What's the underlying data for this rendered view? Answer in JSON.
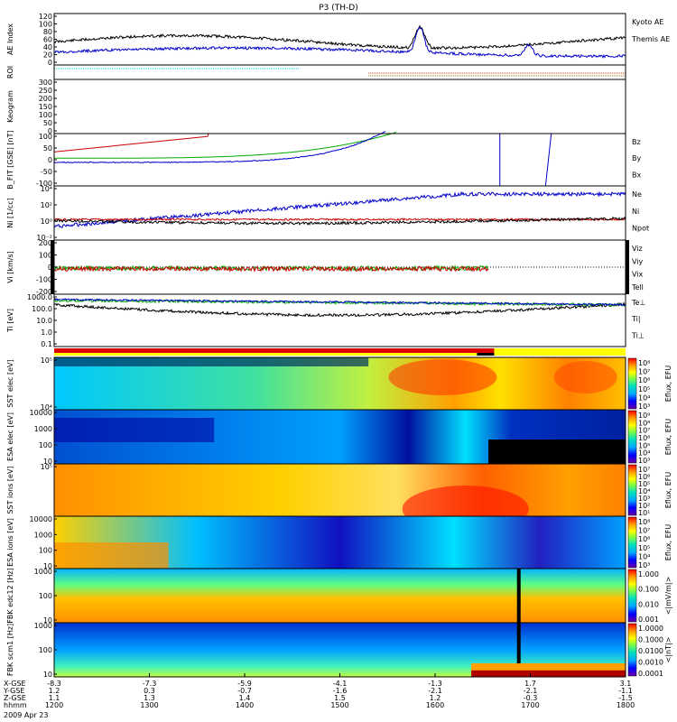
{
  "chart_data": {
    "type": "line",
    "title": "P3 (TH-D)",
    "date_label": "2009 Apr 23",
    "x_ticks": [
      "1200",
      "1300",
      "1400",
      "1500",
      "1600",
      "1700",
      "1800"
    ],
    "orbit_rows": [
      {
        "label": "X-GSE",
        "values": [
          "-8.3",
          "-7.3",
          "-5.9",
          "-4.1",
          "-1.3",
          "1.7",
          "3.1"
        ]
      },
      {
        "label": "Y-GSE",
        "values": [
          "1.2",
          "0.3",
          "-0.7",
          "-1.6",
          "-2.1",
          "-2.1",
          "-1.1"
        ]
      },
      {
        "label": "Z-GSE",
        "values": [
          "1.1",
          "1.3",
          "1.4",
          "1.5",
          "1.2",
          "-0.3",
          "-1.5"
        ]
      },
      {
        "label": "hhmm",
        "values": [
          "1200",
          "1300",
          "1400",
          "1500",
          "1600",
          "1700",
          "1800"
        ]
      }
    ],
    "panels": [
      {
        "id": "ae",
        "ylabel": "AE Index",
        "yticks": [
          "120",
          "100",
          "80",
          "60",
          "40",
          "20",
          "0"
        ],
        "legend": [
          {
            "name": "Kyoto AE",
            "color": "#0000cc"
          },
          {
            "name": "Themis AE",
            "color": "#000000"
          }
        ]
      },
      {
        "id": "roi",
        "ylabel": "ROI"
      },
      {
        "id": "keogram",
        "ylabel": "Keogram",
        "yticks": [
          "300",
          "250",
          "200",
          "150",
          "100",
          "50",
          "0"
        ]
      },
      {
        "id": "bfit",
        "ylabel": "B_FIT [GSE] [nT]",
        "yticks": [
          "100",
          "50",
          "0",
          "-50",
          "-100"
        ],
        "legend": [
          {
            "name": "Bz",
            "color": "#cc0000"
          },
          {
            "name": "By",
            "color": "#00aa00"
          },
          {
            "name": "Bx",
            "color": "#0000cc"
          }
        ]
      },
      {
        "id": "ni",
        "ylabel": "Ni [1/cc]",
        "yticks": [
          "10⁴",
          "10²",
          "10⁰",
          "10⁻²"
        ],
        "legend": [
          {
            "name": "Ne",
            "color": "#cc0000"
          },
          {
            "name": "Ni",
            "color": "#000000"
          },
          {
            "name": "Npot",
            "color": "#0000cc"
          }
        ]
      },
      {
        "id": "vi",
        "ylabel": "Vi [km/s]",
        "yticks": [
          "200",
          "100",
          "0",
          "-100",
          "-200"
        ],
        "legend": [
          {
            "name": "Viz",
            "color": "#cc0000"
          },
          {
            "name": "Viy",
            "color": "#00aa00"
          },
          {
            "name": "Vix",
            "color": "#0000cc"
          },
          {
            "name": "Tell",
            "color": "#000000"
          }
        ]
      },
      {
        "id": "ti",
        "ylabel": "Ti [eV]",
        "yticks": [
          "1000.0",
          "100.0",
          "10.0",
          "1.0",
          "0.1"
        ],
        "legend": [
          {
            "name": "Te⊥",
            "color": "#cc0000"
          },
          {
            "name": "Ti|",
            "color": "#00aa00"
          },
          {
            "name": "Ti⊥",
            "color": "#0000cc"
          }
        ]
      },
      {
        "id": "sst_e",
        "ylabel": "SST elec [eV]",
        "yticks": [
          "10⁵",
          "10⁴"
        ],
        "cbar_label": "Eflux, EFU",
        "cbar_ticks": [
          "10⁸",
          "10⁷",
          "10⁶",
          "10⁵",
          "10⁴",
          "10³"
        ]
      },
      {
        "id": "esa_e",
        "ylabel": "ESA elec [eV]",
        "yticks": [
          "10000",
          "1000",
          "100",
          "10"
        ],
        "cbar_label": "Eflux, EFU",
        "cbar_ticks": [
          "10⁹",
          "10⁸",
          "10⁷",
          "10⁶",
          "10⁵",
          "10⁴",
          "10³"
        ]
      },
      {
        "id": "sst_i",
        "ylabel": "SST ions [eV]",
        "yticks": [
          "10⁵"
        ],
        "cbar_label": "Eflux, EFU",
        "cbar_ticks": [
          "10⁷",
          "10⁶",
          "10⁵",
          "10⁴",
          "10³",
          "10²",
          "10¹"
        ]
      },
      {
        "id": "esa_i",
        "ylabel": "ESA ions [eV]",
        "yticks": [
          "10000",
          "1000",
          "100",
          "10"
        ],
        "cbar_label": "Eflux, EFU",
        "cbar_ticks": [
          "10⁸",
          "10⁷",
          "10⁶",
          "10⁵",
          "10⁴",
          "10³"
        ]
      },
      {
        "id": "fbk_e",
        "ylabel": "FBK edc12 [Hz]",
        "yticks": [
          "1000",
          "100",
          "10"
        ],
        "cbar_label": "<|mV/m|>",
        "cbar_ticks": [
          "1.000",
          "0.100",
          "0.010",
          "0.001"
        ]
      },
      {
        "id": "fbk_b",
        "ylabel": "FBK scm1 [Hz]",
        "yticks": [
          "1000",
          "100",
          "10"
        ],
        "cbar_label": "<|nT|>",
        "cbar_ticks": [
          "1.0000",
          "0.1000",
          "0.0100",
          "0.0010",
          "0.0001"
        ]
      }
    ]
  }
}
